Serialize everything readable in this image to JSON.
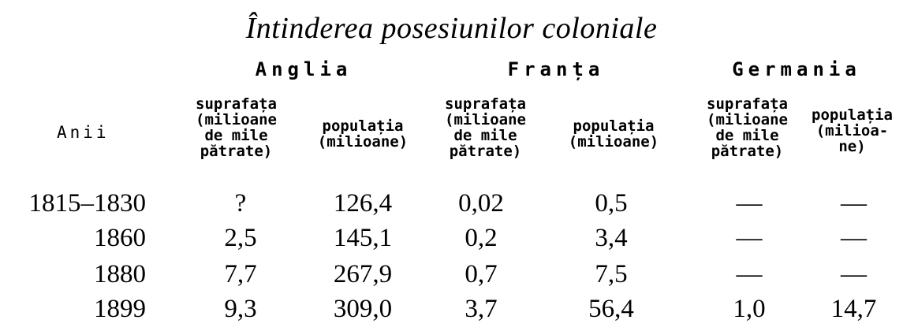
{
  "title": "Întinderea posesiunilor coloniale",
  "year_header": "Anii",
  "countries": [
    "Anglia",
    "Franța",
    "Germania"
  ],
  "area_header": "suprafața\n(milioane\nde mile\npătrate)",
  "population_header": "populația\n(milioane)",
  "germany_population_header": "populația\n(milioa-\nne)",
  "rows": [
    {
      "year": "1815–1830",
      "cells": [
        "?",
        "126,4",
        "0,02",
        "0,5",
        "—",
        "—"
      ]
    },
    {
      "year": "1860",
      "cells": [
        "2,5",
        "145,1",
        "0,2",
        "3,4",
        "—",
        "—"
      ]
    },
    {
      "year": "1880",
      "cells": [
        "7,7",
        "267,9",
        "0,7",
        "7,5",
        "—",
        "—"
      ]
    },
    {
      "year": "1899",
      "cells": [
        "9,3",
        "309,0",
        "3,7",
        "56,4",
        "1,0",
        "14,7"
      ]
    }
  ]
}
